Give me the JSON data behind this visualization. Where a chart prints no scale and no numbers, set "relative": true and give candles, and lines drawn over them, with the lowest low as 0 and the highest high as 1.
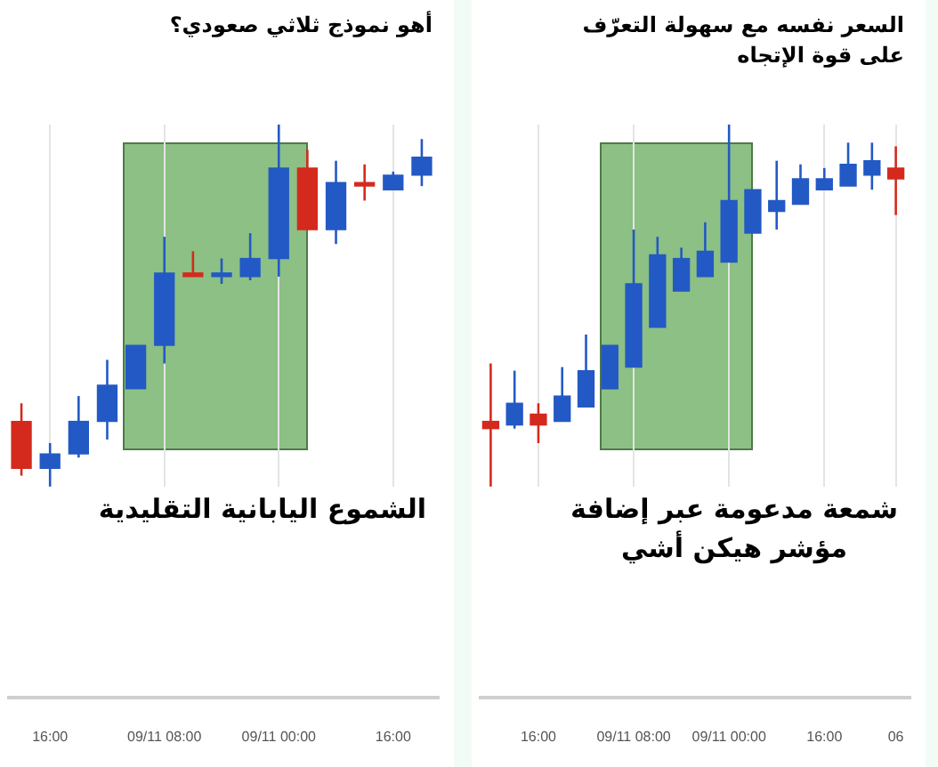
{
  "chart_data": [
    {
      "type": "candlestick",
      "title": "أهو نموذج ثلاثي صعودي؟",
      "relative": true,
      "grid": "x",
      "legend": false,
      "categories": [
        null,
        "16:00",
        null,
        null,
        null,
        "09/11 08:00",
        null,
        null,
        null,
        "09/11 00:00",
        null,
        null,
        null,
        "16:00",
        null
      ],
      "ohlc": [
        [
          0.18,
          0.23,
          0.03,
          0.05
        ],
        [
          0.05,
          0.12,
          0,
          0.09
        ],
        [
          0.09,
          0.25,
          0.08,
          0.18
        ],
        [
          0.18,
          0.35,
          0.13,
          0.28
        ],
        [
          0.27,
          0.39,
          0.27,
          0.39
        ],
        [
          0.39,
          0.69,
          0.34,
          0.59
        ],
        [
          0.59,
          0.65,
          0.58,
          0.58
        ],
        [
          0.58,
          0.63,
          0.56,
          0.59
        ],
        [
          0.58,
          0.7,
          0.57,
          0.63
        ],
        [
          0.63,
          1,
          0.58,
          0.88
        ],
        [
          0.88,
          0.93,
          0.71,
          0.71
        ],
        [
          0.71,
          0.9,
          0.67,
          0.84
        ],
        [
          0.84,
          0.89,
          0.79,
          0.83
        ],
        [
          0.82,
          0.87,
          0.82,
          0.86
        ],
        [
          0.86,
          0.96,
          0.83,
          0.91
        ]
      ],
      "colors": [
        "#d42a1e",
        "#2359c4",
        "#2359c4",
        "#2359c4",
        "#2359c4",
        "#2359c4",
        "#d42a1e",
        "#2359c4",
        "#2359c4",
        "#2359c4",
        "#d42a1e",
        "#2359c4",
        "#d42a1e",
        "#2359c4",
        "#2359c4"
      ],
      "annotations": [
        "الشموع اليابانية التقليدية"
      ]
    },
    {
      "type": "candlestick",
      "title": "السعر نفسه مع سهولة التعرّف على قوة الإتجاه",
      "relative": true,
      "grid": "x",
      "legend": false,
      "categories": [
        null,
        null,
        "16:00",
        null,
        null,
        null,
        "09/11 08:00",
        null,
        null,
        null,
        "09/11 00:00",
        null,
        null,
        null,
        "16:00",
        null,
        null,
        "06"
      ],
      "ohlc": [
        [
          0.18,
          0.34,
          0,
          0.16
        ],
        [
          0.17,
          0.32,
          0.16,
          0.23
        ],
        [
          0.2,
          0.23,
          0.12,
          0.17
        ],
        [
          0.18,
          0.33,
          0.18,
          0.25
        ],
        [
          0.22,
          0.42,
          0.22,
          0.32
        ],
        [
          0.27,
          0.39,
          0.27,
          0.39
        ],
        [
          0.33,
          0.71,
          0.33,
          0.56
        ],
        [
          0.44,
          0.69,
          0.44,
          0.64
        ],
        [
          0.54,
          0.66,
          0.54,
          0.63
        ],
        [
          0.58,
          0.73,
          0.58,
          0.65
        ],
        [
          0.62,
          1,
          0.62,
          0.79
        ],
        [
          0.7,
          0.82,
          0.7,
          0.82
        ],
        [
          0.76,
          0.9,
          0.71,
          0.79
        ],
        [
          0.78,
          0.89,
          0.78,
          0.85
        ],
        [
          0.82,
          0.88,
          0.82,
          0.85
        ],
        [
          0.83,
          0.95,
          0.83,
          0.89
        ],
        [
          0.86,
          0.95,
          0.82,
          0.9
        ],
        [
          0.88,
          0.94,
          0.75,
          0.85
        ]
      ],
      "colors": [
        "#d42a1e",
        "#2359c4",
        "#d42a1e",
        "#2359c4",
        "#2359c4",
        "#2359c4",
        "#2359c4",
        "#2359c4",
        "#2359c4",
        "#2359c4",
        "#2359c4",
        "#2359c4",
        "#2359c4",
        "#2359c4",
        "#2359c4",
        "#2359c4",
        "#2359c4",
        "#d42a1e"
      ],
      "annotations": [
        "شمعة مدعومة عبر إضافة مؤشر هيكن أشي"
      ]
    }
  ]
}
